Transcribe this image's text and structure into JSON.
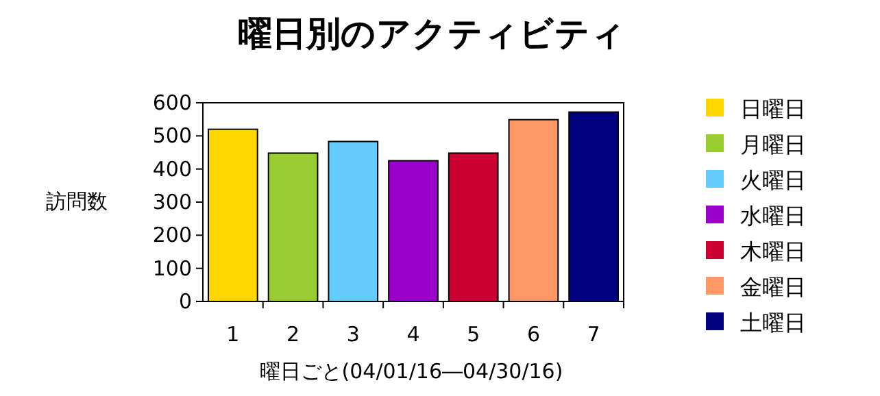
{
  "chart_data": {
    "type": "bar",
    "title": "曜日別のアクティビティ",
    "xlabel": "曜日ごと(04/01/16―04/30/16)",
    "ylabel": "訪問数",
    "categories": [
      "1",
      "2",
      "3",
      "4",
      "5",
      "6",
      "7"
    ],
    "series": [
      {
        "name": "日曜日",
        "color": "#ffd700",
        "values": [
          520,
          null,
          null,
          null,
          null,
          null,
          null
        ]
      },
      {
        "name": "月曜日",
        "color": "#9acd32",
        "values": [
          null,
          448,
          null,
          null,
          null,
          null,
          null
        ]
      },
      {
        "name": "火曜日",
        "color": "#66ccff",
        "values": [
          null,
          null,
          483,
          null,
          null,
          null,
          null
        ]
      },
      {
        "name": "水曜日",
        "color": "#9900cc",
        "values": [
          null,
          null,
          null,
          425,
          null,
          null,
          null
        ]
      },
      {
        "name": "木曜日",
        "color": "#cc0033",
        "values": [
          null,
          null,
          null,
          null,
          448,
          null,
          null
        ]
      },
      {
        "name": "金曜日",
        "color": "#ff9966",
        "values": [
          null,
          null,
          null,
          null,
          null,
          549,
          null
        ]
      },
      {
        "name": "土曜日",
        "color": "#000080",
        "values": [
          null,
          null,
          null,
          null,
          null,
          null,
          572
        ]
      }
    ],
    "ylim": [
      0,
      600
    ],
    "yticks": [
      0,
      100,
      200,
      300,
      400,
      500,
      600
    ],
    "legend": "right"
  }
}
